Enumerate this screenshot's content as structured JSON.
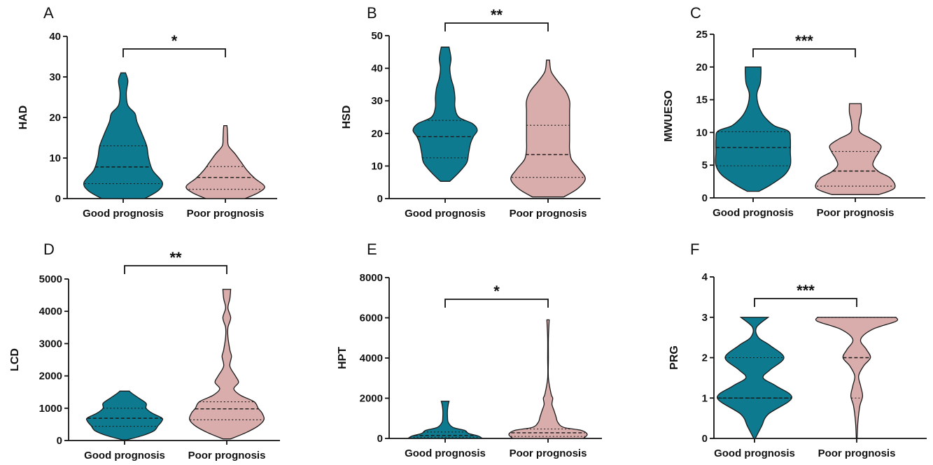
{
  "colors": {
    "good": "#0e7a8f",
    "poor": "#d8adab",
    "outline": "#1a1a1a"
  },
  "chart_data": [
    {
      "type": "violin",
      "panel": "A",
      "ylabel": "HAD",
      "ylim": [
        0,
        40
      ],
      "yticks": [
        0,
        10,
        20,
        30,
        40
      ],
      "categories": [
        "Good prognosis",
        "Poor prognosis"
      ],
      "significance": "*",
      "series": [
        {
          "median": 7.8,
          "q1": 3.7,
          "q3": 13.0,
          "profile": [
            [
              0,
              0.55
            ],
            [
              2,
              0.9
            ],
            [
              4,
              1.0
            ],
            [
              7,
              0.75
            ],
            [
              10,
              0.65
            ],
            [
              13,
              0.6
            ],
            [
              16,
              0.48
            ],
            [
              19,
              0.35
            ],
            [
              21,
              0.3
            ],
            [
              23,
              0.12
            ],
            [
              26,
              0.08
            ],
            [
              29,
              0.12
            ],
            [
              31,
              0.06
            ]
          ]
        },
        {
          "median": 5.2,
          "q1": 2.3,
          "q3": 7.9,
          "profile": [
            [
              0,
              0.5
            ],
            [
              1.5,
              0.85
            ],
            [
              3,
              1.0
            ],
            [
              5,
              0.75
            ],
            [
              7,
              0.55
            ],
            [
              9,
              0.4
            ],
            [
              11,
              0.25
            ],
            [
              13,
              0.08
            ],
            [
              15,
              0.06
            ],
            [
              17,
              0.05
            ],
            [
              18,
              0.04
            ]
          ]
        }
      ]
    },
    {
      "type": "violin",
      "panel": "B",
      "ylabel": "HSD",
      "ylim": [
        0,
        50
      ],
      "yticks": [
        0,
        10,
        20,
        30,
        40,
        50
      ],
      "categories": [
        "Good prognosis",
        "Poor prognosis"
      ],
      "significance": "**",
      "series": [
        {
          "median": 19,
          "q1": 12.5,
          "q3": 24,
          "profile": [
            [
              5.3,
              0.12
            ],
            [
              8,
              0.35
            ],
            [
              11,
              0.55
            ],
            [
              14,
              0.6
            ],
            [
              17,
              0.65
            ],
            [
              19,
              0.72
            ],
            [
              21,
              0.82
            ],
            [
              23,
              0.7
            ],
            [
              25,
              0.35
            ],
            [
              28,
              0.25
            ],
            [
              31,
              0.25
            ],
            [
              34,
              0.22
            ],
            [
              37,
              0.15
            ],
            [
              40,
              0.12
            ],
            [
              43,
              0.15
            ],
            [
              46.5,
              0.1
            ]
          ]
        },
        {
          "median": 13.5,
          "q1": 6.5,
          "q3": 22.5,
          "profile": [
            [
              0.5,
              0.4
            ],
            [
              3,
              0.75
            ],
            [
              6,
              0.95
            ],
            [
              9,
              0.8
            ],
            [
              12,
              0.6
            ],
            [
              15,
              0.55
            ],
            [
              18,
              0.55
            ],
            [
              21,
              0.55
            ],
            [
              24,
              0.55
            ],
            [
              27,
              0.55
            ],
            [
              30,
              0.55
            ],
            [
              33,
              0.45
            ],
            [
              36,
              0.25
            ],
            [
              39,
              0.08
            ],
            [
              42.5,
              0.04
            ]
          ]
        }
      ]
    },
    {
      "type": "violin",
      "panel": "C",
      "ylabel": "MWUESO",
      "ylim": [
        0,
        25
      ],
      "yticks": [
        0,
        5,
        10,
        15,
        20,
        25
      ],
      "categories": [
        "Good prognosis",
        "Poor prognosis"
      ],
      "significance": "***",
      "series": [
        {
          "median": 7.7,
          "q1": 4.9,
          "q3": 10.1,
          "profile": [
            [
              1,
              0.15
            ],
            [
              2,
              0.45
            ],
            [
              3.5,
              0.8
            ],
            [
              5,
              0.95
            ],
            [
              7,
              0.95
            ],
            [
              9,
              0.95
            ],
            [
              10.2,
              0.9
            ],
            [
              11,
              0.55
            ],
            [
              12,
              0.35
            ],
            [
              13,
              0.22
            ],
            [
              14.5,
              0.12
            ],
            [
              16,
              0.1
            ],
            [
              17.5,
              0.18
            ],
            [
              19,
              0.2
            ],
            [
              20,
              0.2
            ]
          ]
        },
        {
          "median": 4.1,
          "q1": 1.8,
          "q3": 7.1,
          "profile": [
            [
              0.5,
              0.6
            ],
            [
              1.5,
              1.0
            ],
            [
              3,
              0.9
            ],
            [
              4,
              0.6
            ],
            [
              5,
              0.45
            ],
            [
              6,
              0.5
            ],
            [
              7,
              0.6
            ],
            [
              8,
              0.65
            ],
            [
              9,
              0.42
            ],
            [
              10,
              0.12
            ],
            [
              11.5,
              0.1
            ],
            [
              13,
              0.15
            ],
            [
              14.4,
              0.15
            ]
          ]
        }
      ]
    },
    {
      "type": "violin",
      "panel": "D",
      "ylabel": "LCD",
      "ylim": [
        0,
        5000
      ],
      "yticks": [
        0,
        1000,
        2000,
        3000,
        4000,
        5000
      ],
      "categories": [
        "Good prognosis",
        "Poor prognosis"
      ],
      "significance": "**",
      "series": [
        {
          "median": 690,
          "q1": 440,
          "q3": 1000,
          "profile": [
            [
              20,
              0.05
            ],
            [
              150,
              0.45
            ],
            [
              300,
              0.75
            ],
            [
              450,
              0.85
            ],
            [
              600,
              0.95
            ],
            [
              700,
              0.95
            ],
            [
              850,
              0.7
            ],
            [
              1000,
              0.55
            ],
            [
              1150,
              0.55
            ],
            [
              1300,
              0.38
            ],
            [
              1450,
              0.2
            ],
            [
              1530,
              0.12
            ]
          ]
        },
        {
          "median": 980,
          "q1": 640,
          "q3": 1200,
          "profile": [
            [
              50,
              0.1
            ],
            [
              250,
              0.5
            ],
            [
              450,
              0.8
            ],
            [
              650,
              0.95
            ],
            [
              850,
              0.9
            ],
            [
              1000,
              0.8
            ],
            [
              1200,
              0.7
            ],
            [
              1400,
              0.35
            ],
            [
              1600,
              0.18
            ],
            [
              1800,
              0.3
            ],
            [
              2000,
              0.22
            ],
            [
              2300,
              0.08
            ],
            [
              2600,
              0.12
            ],
            [
              2800,
              0.08
            ],
            [
              3200,
              0.03
            ],
            [
              3500,
              0.03
            ],
            [
              3800,
              0.1
            ],
            [
              4100,
              0.03
            ],
            [
              4400,
              0.08
            ],
            [
              4680,
              0.1
            ]
          ]
        }
      ]
    },
    {
      "type": "violin",
      "panel": "E",
      "ylabel": "HPT",
      "ylim": [
        0,
        8000
      ],
      "yticks": [
        0,
        2000,
        4000,
        6000,
        8000
      ],
      "categories": [
        "Good prognosis",
        "Poor prognosis"
      ],
      "significance": "*",
      "series": [
        {
          "median": 150,
          "q1": 60,
          "q3": 320,
          "profile": [
            [
              0,
              0.95
            ],
            [
              120,
              0.85
            ],
            [
              250,
              0.6
            ],
            [
              400,
              0.5
            ],
            [
              550,
              0.2
            ],
            [
              800,
              0.08
            ],
            [
              1100,
              0.06
            ],
            [
              1400,
              0.06
            ],
            [
              1700,
              0.08
            ],
            [
              1850,
              0.1
            ]
          ]
        },
        {
          "median": 280,
          "q1": 100,
          "q3": 470,
          "profile": [
            [
              0,
              0.9
            ],
            [
              200,
              1.0
            ],
            [
              400,
              0.85
            ],
            [
              550,
              0.4
            ],
            [
              800,
              0.25
            ],
            [
              1100,
              0.2
            ],
            [
              1400,
              0.15
            ],
            [
              1700,
              0.1
            ],
            [
              2000,
              0.12
            ],
            [
              2200,
              0.08
            ],
            [
              3000,
              0.01
            ],
            [
              4000,
              0.01
            ],
            [
              5000,
              0.01
            ],
            [
              5900,
              0.03
            ]
          ]
        }
      ]
    },
    {
      "type": "violin",
      "panel": "F",
      "ylabel": "PRG",
      "ylim": [
        0,
        4
      ],
      "yticks": [
        0,
        1,
        2,
        3,
        4
      ],
      "categories": [
        "Good prognosis",
        "Poor prognosis"
      ],
      "significance": "***",
      "series": [
        {
          "median": 1,
          "q1": 1,
          "q3": 2,
          "profile": [
            [
              0,
              0.02
            ],
            [
              0.3,
              0.18
            ],
            [
              0.6,
              0.35
            ],
            [
              1,
              0.95
            ],
            [
              1.3,
              0.55
            ],
            [
              1.5,
              0.22
            ],
            [
              1.7,
              0.4
            ],
            [
              2,
              0.75
            ],
            [
              2.3,
              0.4
            ],
            [
              2.5,
              0.1
            ],
            [
              2.75,
              0.05
            ],
            [
              3,
              0.35
            ]
          ]
        },
        {
          "median": 2,
          "q1": 1,
          "q3": 3,
          "profile": [
            [
              0,
              0.01
            ],
            [
              0.4,
              0.03
            ],
            [
              0.8,
              0.08
            ],
            [
              1.05,
              0.15
            ],
            [
              1.3,
              0.1
            ],
            [
              1.55,
              0.05
            ],
            [
              1.8,
              0.18
            ],
            [
              2,
              0.35
            ],
            [
              2.2,
              0.25
            ],
            [
              2.45,
              0.1
            ],
            [
              2.7,
              0.4
            ],
            [
              2.9,
              1.0
            ],
            [
              3,
              1.0
            ]
          ]
        }
      ]
    }
  ]
}
